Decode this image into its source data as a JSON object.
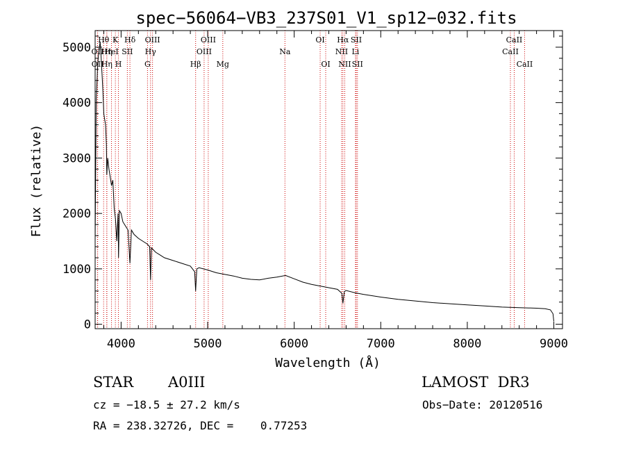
{
  "chart_data": {
    "type": "line",
    "title": "spec−56064−VB3_237S01_V1_sp12−032.fits",
    "xlabel": "Wavelength (Å)",
    "ylabel": "Flux (relative)",
    "xlim": [
      3700,
      9100
    ],
    "ylim": [
      -80,
      5300
    ],
    "x_ticks": [
      4000,
      5000,
      6000,
      7000,
      8000,
      9000
    ],
    "y_ticks": [
      0,
      1000,
      2000,
      3000,
      4000,
      5000
    ],
    "series": [
      {
        "name": "spectrum",
        "x": [
          3700,
          3712,
          3730,
          3745,
          3758,
          3770,
          3780,
          3790,
          3800,
          3810,
          3820,
          3830,
          3835,
          3845,
          3860,
          3875,
          3889,
          3905,
          3920,
          3935,
          3950,
          3965,
          3970,
          3980,
          4000,
          4020,
          4040,
          4060,
          4080,
          4102,
          4120,
          4150,
          4200,
          4250,
          4300,
          4330,
          4340,
          4350,
          4400,
          4450,
          4500,
          4600,
          4700,
          4800,
          4850,
          4861,
          4875,
          4900,
          5000,
          5100,
          5200,
          5300,
          5400,
          5500,
          5600,
          5700,
          5800,
          5900,
          6000,
          6100,
          6200,
          6300,
          6400,
          6500,
          6550,
          6563,
          6580,
          6600,
          6700,
          6800,
          7000,
          7200,
          7400,
          7600,
          7800,
          8000,
          8200,
          8400,
          8600,
          8800,
          8900,
          8960,
          8990,
          9000
        ],
        "y": [
          1500,
          4000,
          4700,
          4950,
          5100,
          4800,
          4500,
          4200,
          3800,
          3700,
          3600,
          3250,
          2700,
          3000,
          2800,
          2650,
          2500,
          2600,
          2100,
          1900,
          1500,
          2000,
          1200,
          2050,
          2000,
          1850,
          1800,
          1750,
          1700,
          1100,
          1700,
          1620,
          1550,
          1500,
          1450,
          1400,
          800,
          1380,
          1300,
          1250,
          1200,
          1150,
          1100,
          1050,
          950,
          600,
          1000,
          1020,
          980,
          930,
          900,
          870,
          830,
          810,
          800,
          830,
          850,
          880,
          820,
          760,
          720,
          690,
          660,
          630,
          560,
          380,
          590,
          610,
          570,
          540,
          490,
          450,
          420,
          390,
          370,
          350,
          330,
          310,
          300,
          290,
          280,
          260,
          190,
          50
        ]
      }
    ],
    "lines": [
      {
        "label": "Hθ",
        "wl": 3798,
        "row": 0
      },
      {
        "label": "K",
        "wl": 3934,
        "row": 0
      },
      {
        "label": "Hδ",
        "wl": 4102,
        "row": 0
      },
      {
        "label": "OIII",
        "wl": 4363,
        "row": 0
      },
      {
        "label": "OIII",
        "wl": 5007,
        "row": 0
      },
      {
        "label": "OI",
        "wl": 6300,
        "row": 0
      },
      {
        "label": "Hα",
        "wl": 6563,
        "row": 0
      },
      {
        "label": "SII",
        "wl": 6717,
        "row": 0
      },
      {
        "label": "CaII",
        "wl": 8542,
        "row": 0
      },
      {
        "label": "OII",
        "wl": 3727,
        "row": 1
      },
      {
        "label": "Hη",
        "wl": 3835,
        "row": 1
      },
      {
        "label": "HeI",
        "wl": 3889,
        "row": 1
      },
      {
        "label": "SII",
        "wl": 4072,
        "row": 1
      },
      {
        "label": "Hγ",
        "wl": 4340,
        "row": 1
      },
      {
        "label": "OIII",
        "wl": 4959,
        "row": 1
      },
      {
        "label": "Na",
        "wl": 5893,
        "row": 1
      },
      {
        "label": "NII",
        "wl": 6548,
        "row": 1
      },
      {
        "label": "Li",
        "wl": 6708,
        "row": 1
      },
      {
        "label": "CaII",
        "wl": 8498,
        "row": 1
      },
      {
        "label": "OII",
        "wl": 3729,
        "row": 2
      },
      {
        "label": "Hη",
        "wl": 3835,
        "row": 2
      },
      {
        "label": "H",
        "wl": 3969,
        "row": 2
      },
      {
        "label": "G",
        "wl": 4305,
        "row": 2
      },
      {
        "label": "Hβ",
        "wl": 4861,
        "row": 2
      },
      {
        "label": "Mg",
        "wl": 5175,
        "row": 2
      },
      {
        "label": "OI",
        "wl": 6364,
        "row": 2
      },
      {
        "label": "NII",
        "wl": 6584,
        "row": 2
      },
      {
        "label": "SII",
        "wl": 6731,
        "row": 2
      },
      {
        "label": "CaII",
        "wl": 8662,
        "row": 2
      }
    ],
    "line_color": "#cc0000"
  },
  "info": {
    "object_class": "STAR",
    "subclass": "A0III",
    "survey": "LAMOST  DR3",
    "cz": "cz = −18.5 ± 27.2 km/s",
    "obs_date": "Obs−Date: 20120516",
    "coords": "RA = 238.32726, DEC =    0.77253"
  }
}
